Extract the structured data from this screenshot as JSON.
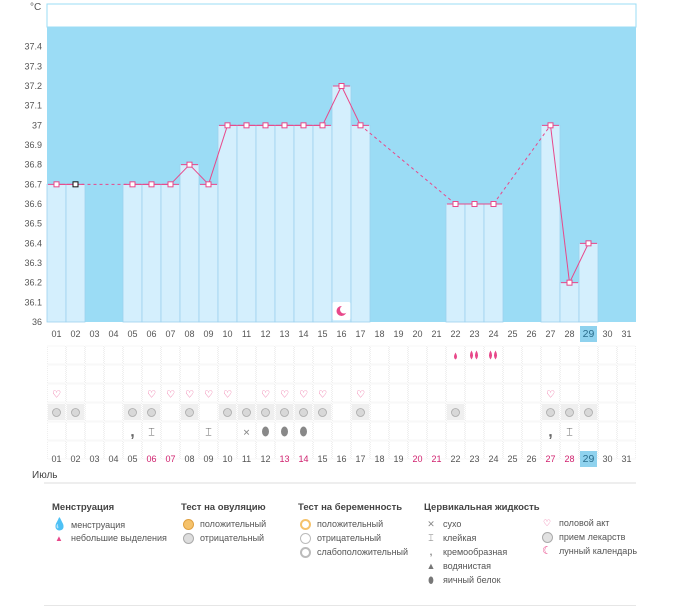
{
  "chart_data": {
    "type": "line",
    "ylabel": "°C",
    "ylim": [
      36.0,
      37.5
    ],
    "yticks": [
      "37.4",
      "37.3",
      "37.2",
      "37.1",
      "37",
      "36.9",
      "36.8",
      "36.7",
      "36.6",
      "36.5",
      "36.4",
      "36.3",
      "36.2",
      "36.1",
      "36"
    ],
    "days": [
      "01",
      "02",
      "03",
      "04",
      "05",
      "06",
      "07",
      "08",
      "09",
      "10",
      "11",
      "12",
      "13",
      "14",
      "15",
      "16",
      "17",
      "18",
      "19",
      "20",
      "21",
      "22",
      "23",
      "24",
      "25",
      "26",
      "27",
      "28",
      "29",
      "30",
      "31"
    ],
    "temperatures": [
      36.7,
      36.7,
      null,
      null,
      36.7,
      36.7,
      36.7,
      36.8,
      36.7,
      37.0,
      37.0,
      37.0,
      37.0,
      37.0,
      37.0,
      37.2,
      37.0,
      null,
      null,
      null,
      null,
      36.6,
      36.6,
      36.6,
      null,
      null,
      37.0,
      36.2,
      36.4,
      null,
      null
    ],
    "dashed_segments": [
      [
        2,
        5
      ],
      [
        17,
        22
      ],
      [
        24,
        27
      ]
    ],
    "excluded_points": [
      2
    ],
    "today": "29",
    "month": "Июль",
    "weekend_days": [
      "06",
      "07",
      "13",
      "14",
      "20",
      "21",
      "27",
      "28"
    ],
    "moon_day": "16",
    "menstruation_large": [
      "23",
      "24"
    ],
    "menstruation_small": [
      "22"
    ],
    "intercourse_days": [
      "01",
      "06",
      "07",
      "08",
      "09",
      "10",
      "12",
      "13",
      "14",
      "15",
      "17",
      "27"
    ],
    "medicine_days": [
      "01",
      "02",
      "05",
      "06",
      "08",
      "10",
      "11",
      "12",
      "13",
      "14",
      "15",
      "17",
      "22",
      "27",
      "28",
      "29"
    ],
    "cervical": [
      {
        "day": "05",
        "type": "creamy"
      },
      {
        "day": "06",
        "type": "sticky"
      },
      {
        "day": "09",
        "type": "sticky"
      },
      {
        "day": "11",
        "type": "dry"
      },
      {
        "day": "12",
        "type": "egg-white"
      },
      {
        "day": "13",
        "type": "egg-white"
      },
      {
        "day": "14",
        "type": "egg-white"
      },
      {
        "day": "27",
        "type": "creamy"
      },
      {
        "day": "28",
        "type": "sticky"
      }
    ],
    "colors": {
      "plot_bg": "#9bdcf5",
      "bar": "#d4effd",
      "bar_border": "#9cd1ee",
      "line": "#e8488a",
      "weekend_text": "#d0206e",
      "today_bg": "#8fd2ee"
    }
  },
  "legend": {
    "menstruation": {
      "title": "Менструация",
      "items": [
        "менструация",
        "небольшие выделения"
      ]
    },
    "ovulation": {
      "title": "Тест на овуляцию",
      "items": [
        "положительный",
        "отрицательный"
      ]
    },
    "pregnancy": {
      "title": "Тест на беременность",
      "items": [
        "положительный",
        "отрицательный",
        "слабоположительный"
      ]
    },
    "cervical": {
      "title": "Цервикальная жидкость",
      "items": [
        "сухо",
        "клейкая",
        "кремообразная",
        "водянистая",
        "яичный белок"
      ]
    },
    "other": {
      "items": [
        "половой акт",
        "прием лекарств",
        "лунный календарь"
      ]
    }
  }
}
